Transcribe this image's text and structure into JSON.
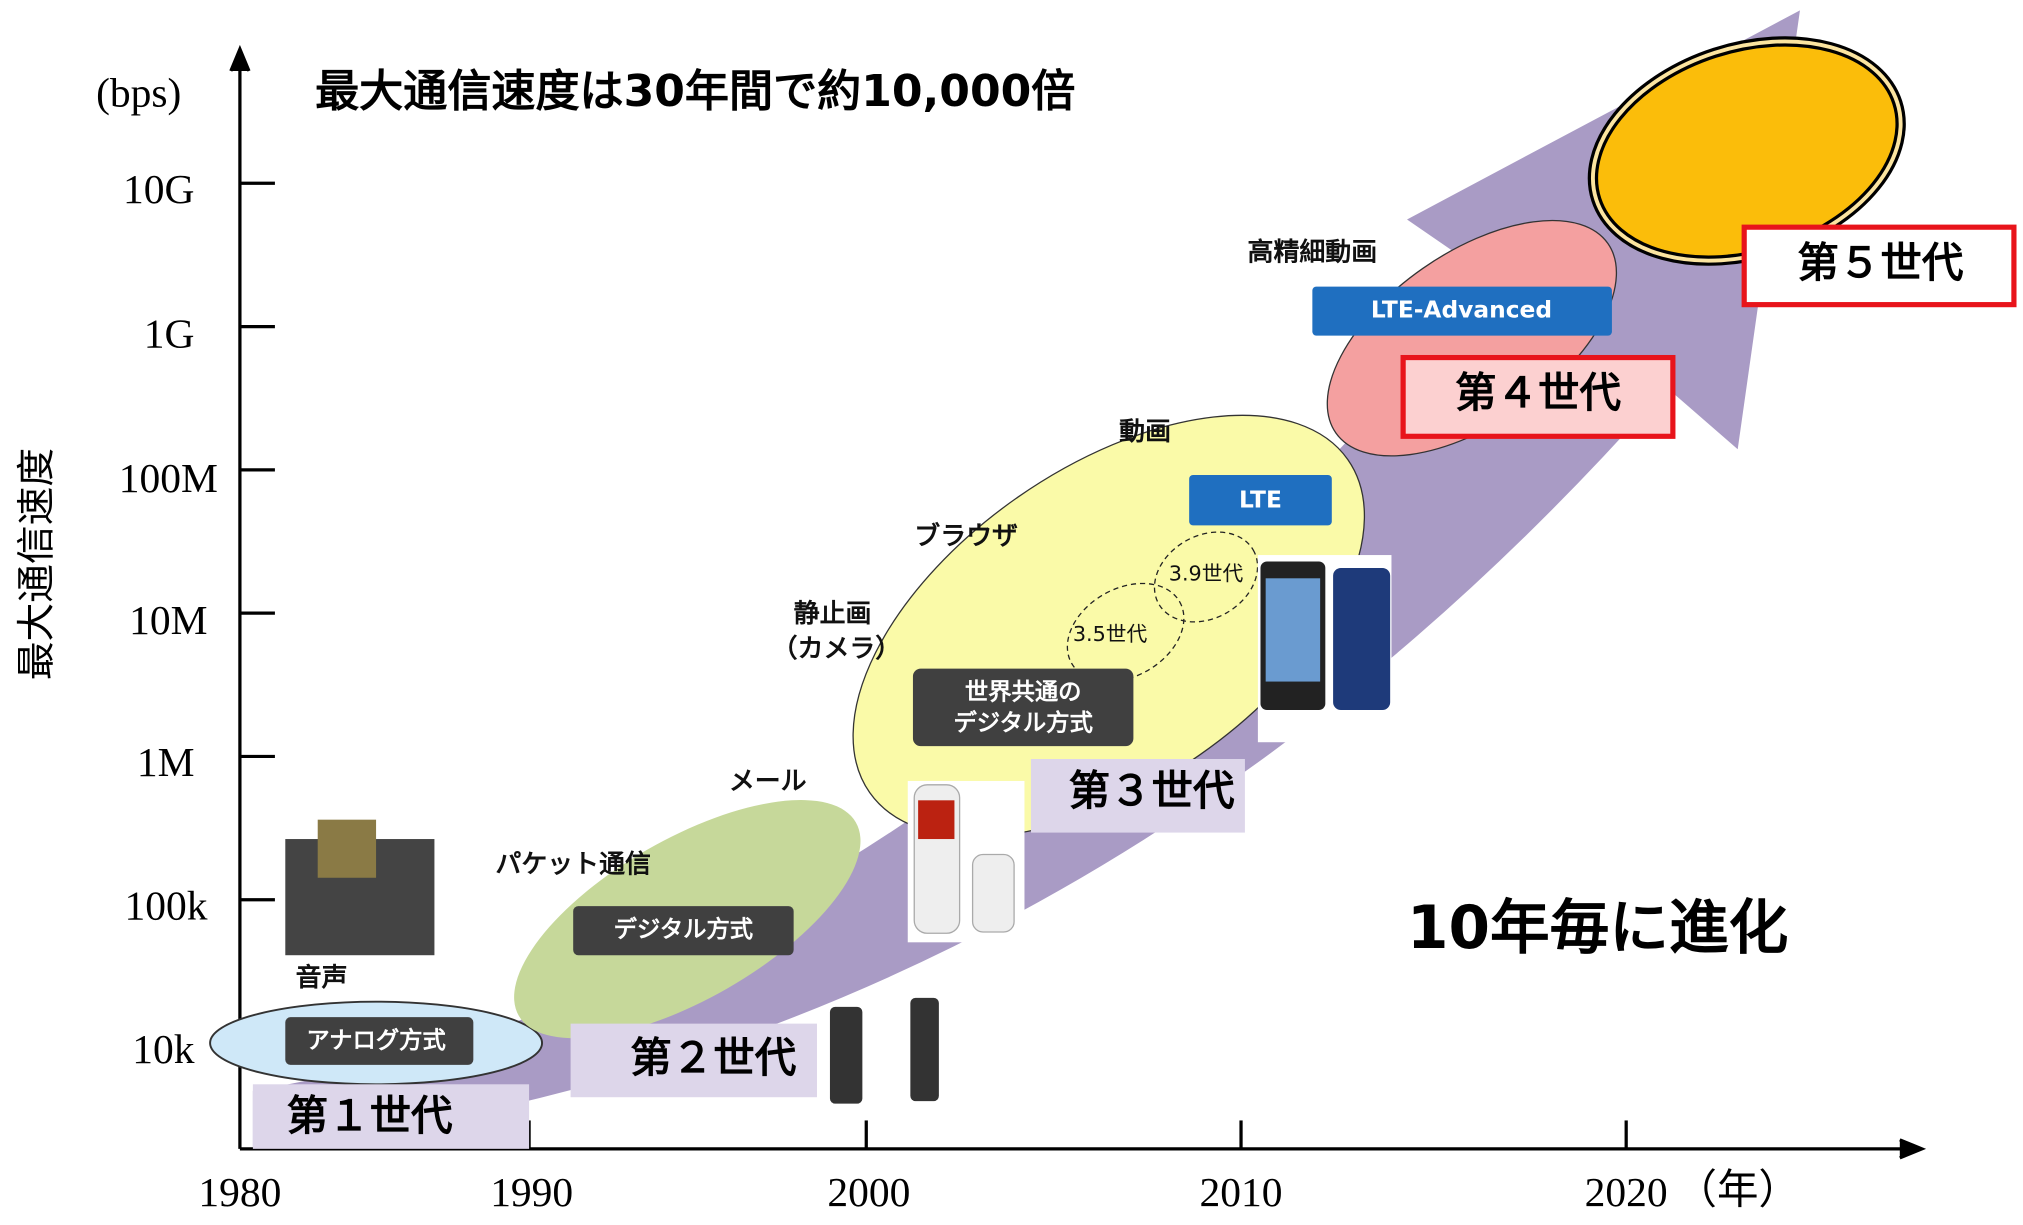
{
  "title": "最大通信速度は30年間で約10,000倍",
  "y_axis": {
    "label": "最大通信速度",
    "unit": "(bps)",
    "ticks": [
      "10G",
      "1G",
      "100M",
      "10M",
      "1M",
      "100k",
      "10k"
    ]
  },
  "x_axis": {
    "ticks": [
      "1980",
      "1990",
      "2000",
      "2010",
      "2020"
    ],
    "unit": "（年）"
  },
  "generations": [
    "第１世代",
    "第２世代",
    "第３世代",
    "第４世代",
    "第５世代"
  ],
  "technologies": {
    "analog": "アナログ方式",
    "digital": "デジタル方式",
    "global": [
      "世界共通の",
      "デジタル方式"
    ],
    "lte": "LTE",
    "lte_advanced": "LTE-Advanced"
  },
  "sub_generations": [
    "3.5世代",
    "3.9世代"
  ],
  "services": [
    "音声",
    "パケット通信",
    "メール",
    "静止画",
    "（カメラ）",
    "ブラウザ",
    "動画",
    "高精細動画"
  ],
  "slogan": "10年毎に進化"
}
